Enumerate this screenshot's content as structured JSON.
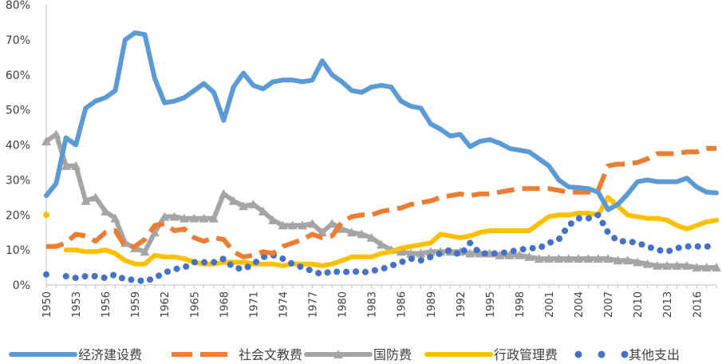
{
  "chart_data": {
    "type": "line",
    "title": "",
    "xlabel": "",
    "ylabel": "",
    "x": [
      1950,
      1951,
      1952,
      1953,
      1954,
      1955,
      1956,
      1957,
      1958,
      1959,
      1960,
      1961,
      1962,
      1963,
      1964,
      1965,
      1966,
      1967,
      1968,
      1969,
      1970,
      1971,
      1972,
      1973,
      1974,
      1975,
      1976,
      1977,
      1978,
      1979,
      1980,
      1981,
      1982,
      1983,
      1984,
      1985,
      1986,
      1987,
      1988,
      1989,
      1990,
      1991,
      1992,
      1993,
      1994,
      1995,
      1996,
      1997,
      1998,
      1999,
      2000,
      2001,
      2002,
      2003,
      2004,
      2005,
      2006,
      2007,
      2008,
      2009,
      2010,
      2011,
      2012,
      2013,
      2014,
      2015,
      2016,
      2017,
      2018
    ],
    "x_tick_labels": [
      "1950",
      "1953",
      "1956",
      "1959",
      "1962",
      "1965",
      "1968",
      "1971",
      "1974",
      "1977",
      "1980",
      "1983",
      "1986",
      "1989",
      "1992",
      "1995",
      "1998",
      "2001",
      "2004",
      "2007",
      "2010",
      "2013",
      "2016"
    ],
    "y_tick_labels": [
      "0%",
      "10%",
      "20%",
      "30%",
      "40%",
      "50%",
      "60%",
      "70%",
      "80%"
    ],
    "ylim": [
      0,
      80
    ],
    "y_unit": "%",
    "grid": false,
    "legend_position": "bottom",
    "series": [
      {
        "name": "经济建设费",
        "color": "#5B9BD5",
        "style": "solid",
        "values": [
          25.5,
          29,
          42,
          40,
          50.5,
          52.5,
          53.5,
          55.5,
          70,
          72,
          71.5,
          59,
          52,
          52.5,
          53.5,
          55.5,
          57.5,
          55,
          47,
          56.5,
          60.5,
          57,
          56,
          58,
          58.5,
          58.5,
          58,
          58.5,
          64,
          60,
          58,
          55.5,
          55,
          56.5,
          57,
          56.5,
          52.5,
          51,
          50.5,
          46,
          44.5,
          42.5,
          43,
          39.5,
          41,
          41.5,
          40.5,
          39,
          38.5,
          38,
          36,
          34,
          30,
          28,
          27.8,
          27.5,
          26.5,
          21.5,
          23,
          26,
          29.5,
          30,
          29.5,
          29.5,
          29.5,
          30.5,
          28,
          26.5,
          26.3
        ]
      },
      {
        "name": "社会文教费",
        "color": "#ED7D31",
        "style": "dashed",
        "values": [
          11,
          11,
          12,
          14.5,
          14,
          12.5,
          15,
          15.5,
          11,
          11,
          13,
          17,
          17.5,
          15.5,
          16,
          13.5,
          12.5,
          13.5,
          13,
          9.5,
          8,
          8.5,
          9.5,
          9,
          11,
          12,
          13,
          14.5,
          13.5,
          14,
          18,
          19.5,
          20,
          20,
          21,
          21.5,
          22,
          23,
          23.5,
          24,
          25,
          25.5,
          26,
          25.5,
          26,
          26,
          26.5,
          27,
          27.5,
          27.5,
          27.5,
          27.5,
          27,
          26.5,
          26.5,
          26.5,
          27,
          34,
          34.5,
          34.5,
          35,
          36,
          37.5,
          37.5,
          37.5,
          38,
          38,
          39,
          39
        ]
      },
      {
        "name": "国防费",
        "color": "#A5A5A5",
        "style": "solid-triangle",
        "values": [
          41,
          43,
          34,
          34,
          24,
          25,
          21,
          19,
          12,
          10.5,
          9.5,
          15,
          19.5,
          19.5,
          19,
          19,
          19,
          19,
          26,
          24,
          22.5,
          23,
          21,
          18.5,
          17,
          17,
          17,
          17.5,
          15,
          17.5,
          16,
          15,
          14.5,
          13.5,
          11.5,
          10,
          9.5,
          9,
          9,
          9.5,
          9.5,
          9.5,
          9.5,
          9,
          9,
          9,
          8.5,
          8.5,
          8.5,
          8,
          7.5,
          7.5,
          7.5,
          7.5,
          7.5,
          7.5,
          7.5,
          7.5,
          7,
          7,
          6.5,
          6,
          5.5,
          5.5,
          5.5,
          5.5,
          5,
          5,
          5
        ]
      },
      {
        "name": "行政管理费",
        "color": "#FFC000",
        "style": "solid",
        "values": [
          20,
          null,
          10,
          10,
          9.5,
          9.5,
          10,
          9,
          7,
          6,
          6,
          8.5,
          8,
          8,
          7.5,
          6.5,
          6,
          6,
          6.5,
          6.5,
          6.5,
          6,
          6,
          6,
          5.5,
          6,
          6,
          6,
          5.5,
          6,
          7,
          8,
          8,
          8,
          9,
          9.5,
          10.5,
          11,
          11.5,
          12,
          14.5,
          14,
          13.5,
          14,
          15,
          15.5,
          15.5,
          15.5,
          15.5,
          15.5,
          17.5,
          19.5,
          20,
          20,
          20.5,
          20.5,
          20,
          25,
          22.5,
          20,
          19.5,
          19,
          19,
          18.5,
          17,
          16,
          17,
          18,
          18.5
        ]
      },
      {
        "name": "其他支出",
        "color": "#4472C4",
        "style": "dotted",
        "values": [
          3,
          null,
          2.5,
          2,
          2.5,
          2.5,
          2,
          3,
          1.5,
          1.5,
          1,
          2,
          3.5,
          4.5,
          5,
          6.5,
          6.5,
          6.5,
          7.5,
          5,
          4.5,
          6,
          8,
          8.5,
          7.5,
          6,
          5,
          4,
          3,
          4,
          3.5,
          4,
          3.5,
          4,
          4.5,
          5.5,
          6.5,
          7.5,
          7,
          8,
          9,
          10,
          8.5,
          12,
          9,
          9,
          9,
          9.5,
          10,
          10.5,
          10.5,
          12,
          13,
          17,
          19,
          19,
          20,
          15,
          12.5,
          12.5,
          12,
          11,
          10,
          9.5,
          10.5,
          11,
          11,
          11,
          11
        ]
      }
    ]
  }
}
